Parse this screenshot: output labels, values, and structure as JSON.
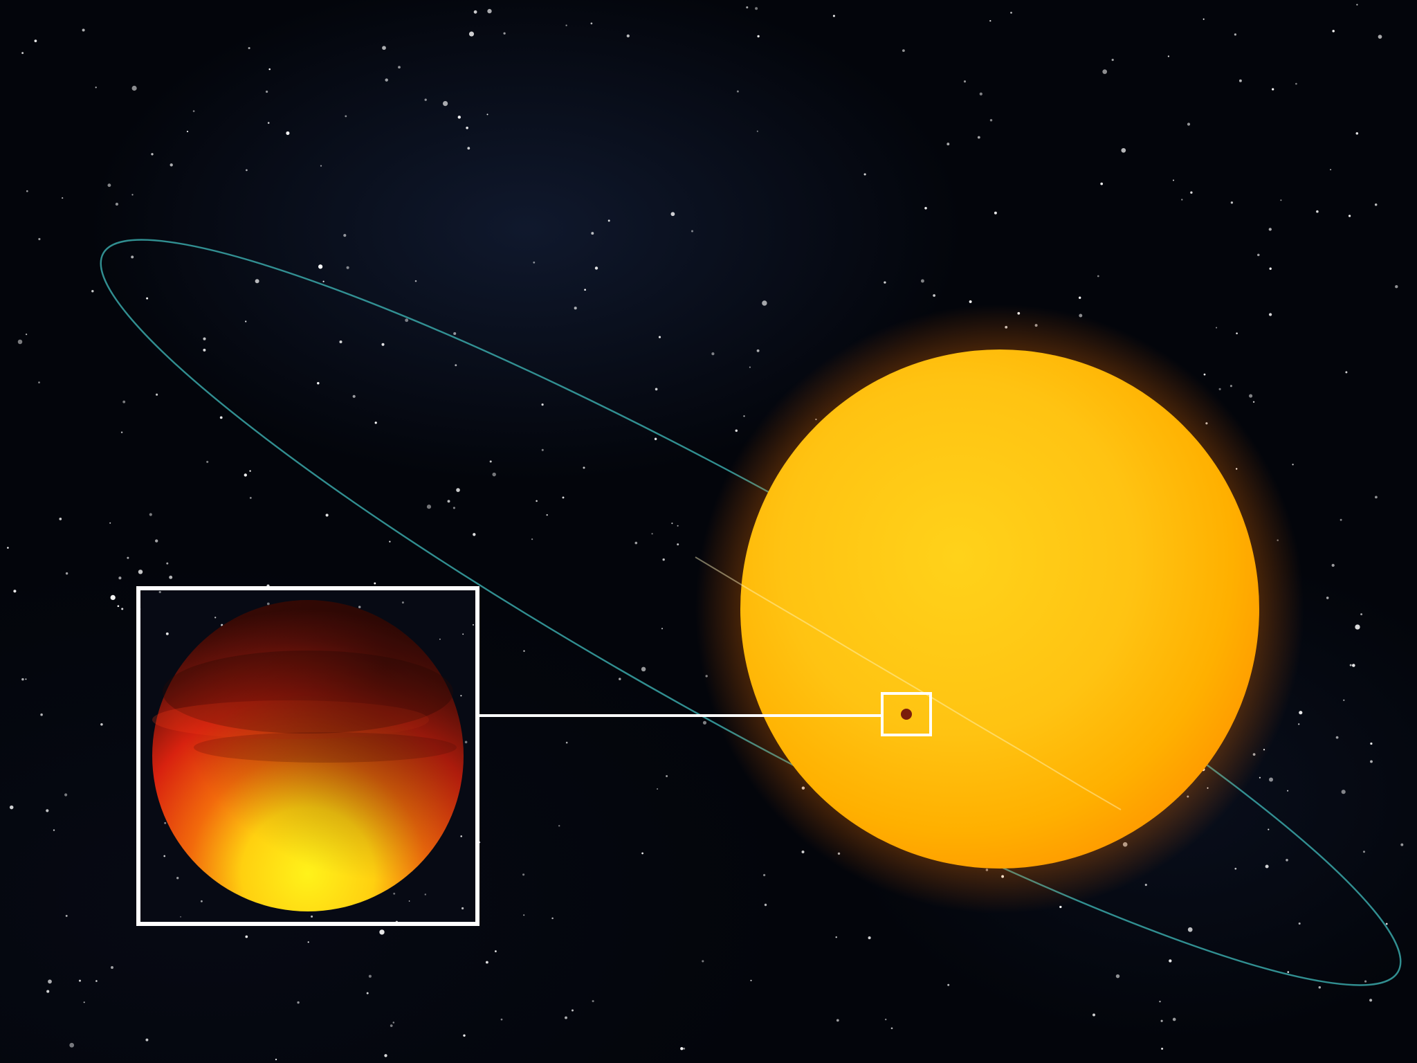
{
  "scene": {
    "subject": "star-with-transiting-planet",
    "colors": {
      "space": "#03050b",
      "orbit": "#3aa7a8",
      "star_core": "#ffd21a",
      "star_edge": "#ff9e00",
      "star_glow": "#ff8c00",
      "planet_dark": "#3b0a05",
      "planet_red": "#d8220f",
      "planet_yellow": "#fff21a",
      "inset_frame": "#ffffff",
      "transit_dot": "#7a1e0c"
    },
    "icons": [
      "star-disk",
      "planet-disk",
      "orbit-line",
      "zoom-inset"
    ]
  }
}
